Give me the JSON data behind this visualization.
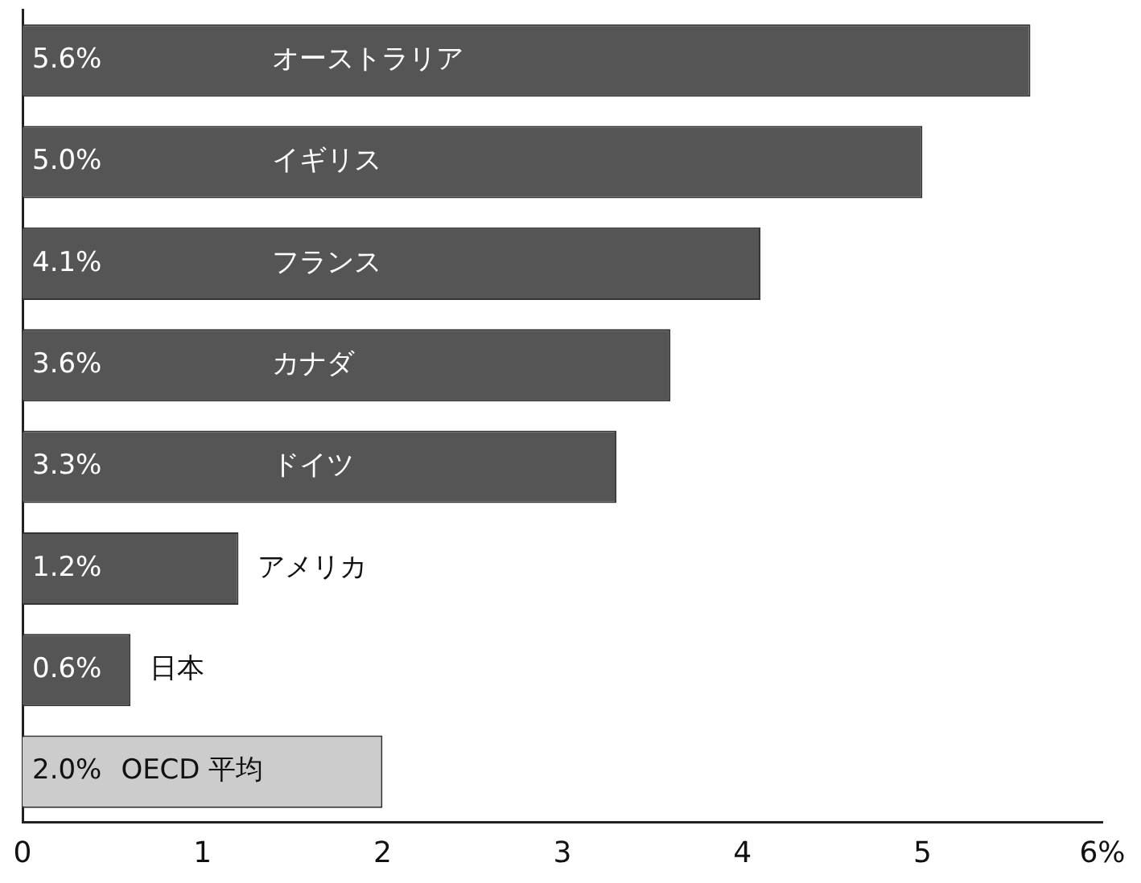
{
  "chart_data": {
    "type": "bar",
    "orientation": "horizontal",
    "categories": [
      "オーストラリア",
      "イギリス",
      "フランス",
      "カナダ",
      "ドイツ",
      "アメリカ",
      "日本",
      "OECD 平均"
    ],
    "values": [
      5.6,
      5.0,
      4.1,
      3.6,
      3.3,
      1.2,
      0.6,
      2.0
    ],
    "value_labels": [
      "5.6%",
      "5.0%",
      "4.1%",
      "3.6%",
      "3.3%",
      "1.2%",
      "0.6%",
      "2.0%"
    ],
    "colors": [
      "#555555",
      "#555555",
      "#555555",
      "#555555",
      "#555555",
      "#555555",
      "#555555",
      "#cccccc"
    ],
    "xlim": [
      0,
      6
    ],
    "xticks": [
      0,
      1,
      2,
      3,
      4,
      5,
      {
        "value": 6,
        "label": "6%"
      }
    ],
    "tick_labels": "x",
    "grid": false,
    "legend": false
  }
}
